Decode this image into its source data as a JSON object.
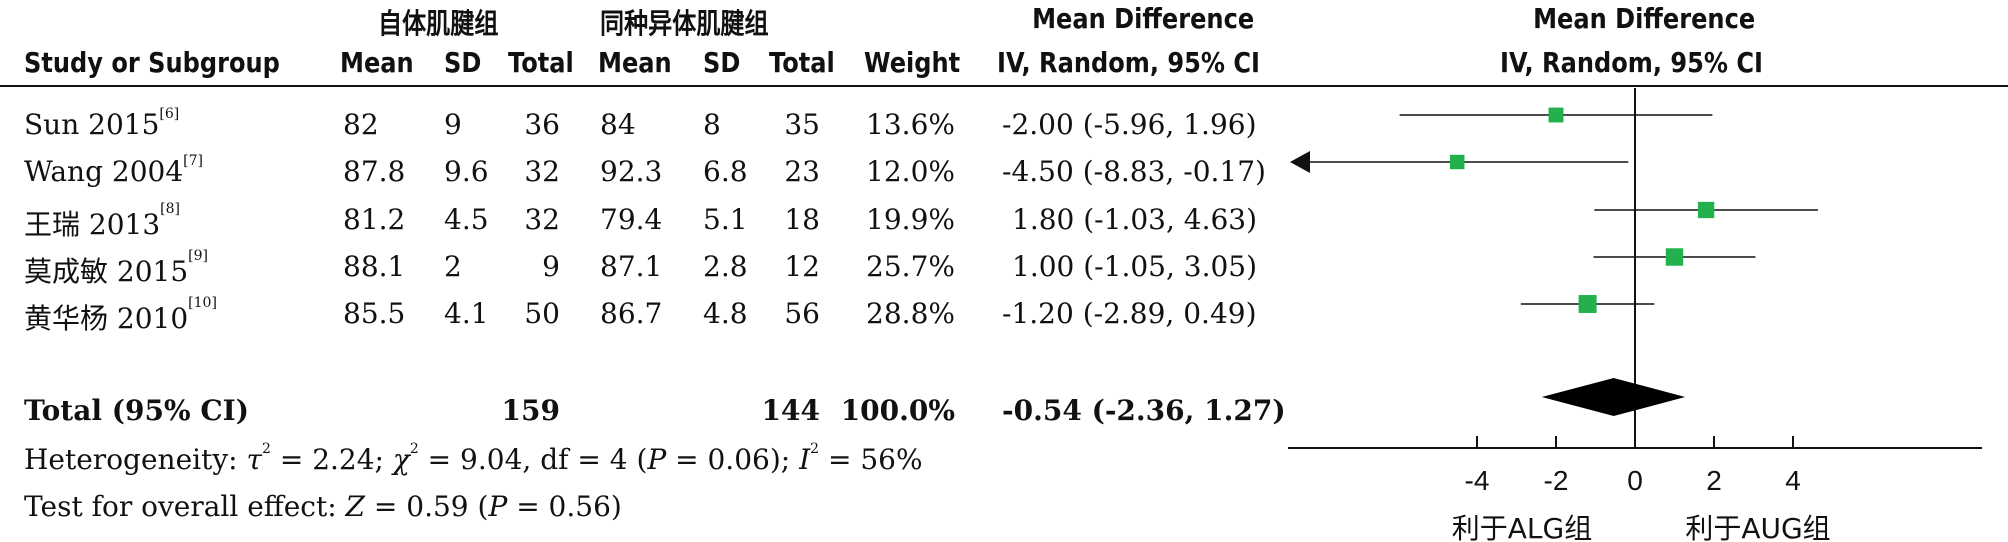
{
  "headers": {
    "group_experimental": "自体肌腱组",
    "group_control": "同种异体肌腱组",
    "study": "Study or Subgroup",
    "mean": "Mean",
    "sd": "SD",
    "total": "Total",
    "weight": "Weight",
    "md_title": "Mean Difference",
    "md_method": "IV, Random, 95% CI",
    "plot_title": "Mean Difference",
    "plot_method": "IV, Random, 95% CI"
  },
  "studies": [
    {
      "name": "Sun 2015",
      "ref": "[6]",
      "e_mean": "82",
      "e_sd": "9",
      "e_total": "36",
      "c_mean": "84",
      "c_sd": "8",
      "c_total": "35",
      "weight": "13.6%",
      "ci_text": "-2.00 (-5.96, 1.96)"
    },
    {
      "name": "Wang 2004",
      "ref": "[7]",
      "e_mean": "87.8",
      "e_sd": "9.6",
      "e_total": "32",
      "c_mean": "92.3",
      "c_sd": "6.8",
      "c_total": "23",
      "weight": "12.0%",
      "ci_text": "-4.50 (-8.83, -0.17)"
    },
    {
      "name": "王瑞 2013",
      "ref": "[8]",
      "e_mean": "81.2",
      "e_sd": "4.5",
      "e_total": "32",
      "c_mean": "79.4",
      "c_sd": "5.1",
      "c_total": "18",
      "weight": "19.9%",
      "ci_text": "1.80 (-1.03, 4.63)"
    },
    {
      "name": "莫成敏 2015",
      "ref": "[9]",
      "e_mean": "88.1",
      "e_sd": "2",
      "e_total": "9",
      "c_mean": "87.1",
      "c_sd": "2.8",
      "c_total": "12",
      "weight": "25.7%",
      "ci_text": "1.00 (-1.05, 3.05)"
    },
    {
      "name": "黄华杨 2010",
      "ref": "[10]",
      "e_mean": "85.5",
      "e_sd": "4.1",
      "e_total": "50",
      "c_mean": "86.7",
      "c_sd": "4.8",
      "c_total": "56",
      "weight": "28.8%",
      "ci_text": "-1.20 (-2.89, 0.49)"
    }
  ],
  "total": {
    "label": "Total (95% CI)",
    "e_total": "159",
    "c_total": "144",
    "weight": "100.0%",
    "ci_text": "-0.54 (-2.36, 1.27)"
  },
  "heterogeneity": {
    "prefix": "Heterogeneity: ",
    "tau_sym": "τ",
    "tau_sup": "2",
    "tau_val": " = 2.24; ",
    "chi_sym": "χ",
    "chi_sup": "2",
    "chi_val": " = 9.04, df = 4 (",
    "p_sym": "P",
    "p_val": " = 0.06); ",
    "i_sym": "I",
    "i_sup": "2",
    "i_val": " = 56%"
  },
  "overall_effect": {
    "prefix": "Test for overall effect: ",
    "z_sym": "Z",
    "z_val": " = 0.59 (",
    "p_sym": "P",
    "p_val": " = 0.56)"
  },
  "favours_left": "利于ALG组",
  "favours_right": "利于AUG组",
  "colors": {
    "square": "#22b14c",
    "diamond": "#000000",
    "line": "#111111"
  },
  "chart_data": {
    "type": "forest",
    "x_ticks": [
      -4,
      -2,
      0,
      2,
      4
    ],
    "xlim": [
      -8.83,
      8.83
    ],
    "studies": [
      {
        "name": "Sun 2015",
        "md": -2.0,
        "lower": -5.96,
        "upper": 1.96,
        "weight": 13.6
      },
      {
        "name": "Wang 2004",
        "md": -4.5,
        "lower": -8.83,
        "upper": -0.17,
        "weight": 12.0,
        "arrow_left": true
      },
      {
        "name": "王瑞 2013",
        "md": 1.8,
        "lower": -1.03,
        "upper": 4.63,
        "weight": 19.9
      },
      {
        "name": "莫成敏 2015",
        "md": 1.0,
        "lower": -1.05,
        "upper": 3.05,
        "weight": 25.7
      },
      {
        "name": "黄华杨 2010",
        "md": -1.2,
        "lower": -2.89,
        "upper": 0.49,
        "weight": 28.8
      }
    ],
    "pooled": {
      "md": -0.54,
      "lower": -2.36,
      "upper": 1.27
    }
  }
}
